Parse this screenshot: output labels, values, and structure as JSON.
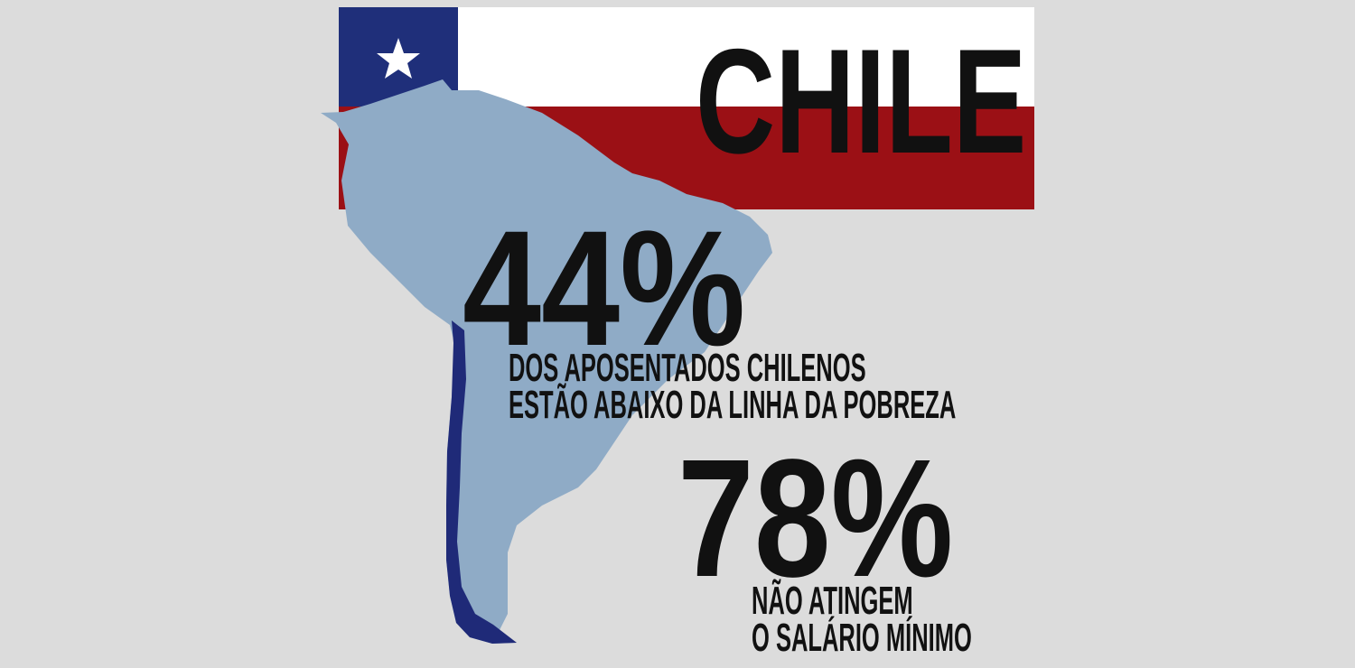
{
  "title": "CHILE",
  "colors": {
    "background": "#dcdcdc",
    "flag_white": "#ffffff",
    "flag_red": "#9b1015",
    "flag_blue": "#1f2f7a",
    "map_south_america": "#8fabc6",
    "map_chile": "#1f2a78",
    "text": "#111111"
  },
  "icons": {
    "flag": "chile-flag",
    "star": "star-icon",
    "map": "south-america-map"
  },
  "stats": [
    {
      "value": "44%",
      "caption_lines": [
        "DOS APOSENTADOS CHILENOS",
        "ESTÃO ABAIXO DA LINHA DA POBREZA"
      ]
    },
    {
      "value": "78%",
      "caption_lines": [
        "NÃO ATINGEM",
        "O SALÁRIO MÍNIMO"
      ]
    }
  ]
}
